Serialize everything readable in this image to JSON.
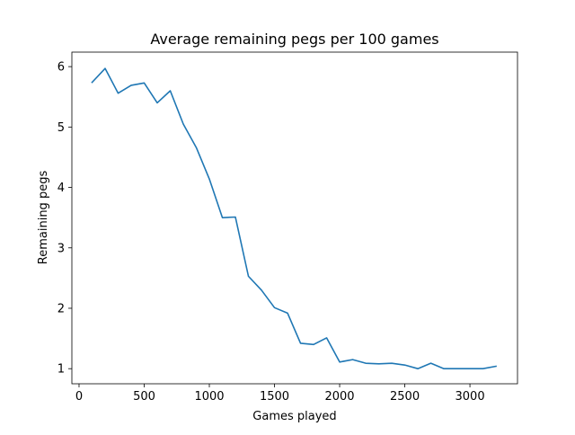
{
  "chart_data": {
    "type": "line",
    "title": "Average remaining pegs per 100 games",
    "xlabel": "Games played",
    "ylabel": "Remaining pegs",
    "xlim": [
      -55,
      3365
    ],
    "ylim": [
      0.75,
      6.24
    ],
    "xticks": [
      0,
      500,
      1000,
      1500,
      2000,
      2500,
      3000
    ],
    "yticks": [
      1,
      2,
      3,
      4,
      5,
      6
    ],
    "grid": false,
    "line_color": "#1f77b4",
    "series": [
      {
        "x": [
          100,
          200,
          300,
          400,
          500,
          600,
          700,
          800,
          900,
          1000,
          1100,
          1200,
          1300,
          1400,
          1500,
          1600,
          1700,
          1800,
          1900,
          2000,
          2100,
          2200,
          2300,
          2400,
          2500,
          2600,
          2700,
          2800,
          2900,
          3000,
          3100,
          3200
        ],
        "values": [
          5.74,
          5.97,
          5.56,
          5.69,
          5.73,
          5.4,
          5.6,
          5.05,
          4.66,
          4.14,
          3.5,
          3.51,
          2.53,
          2.3,
          2.01,
          1.92,
          1.42,
          1.4,
          1.51,
          1.11,
          1.15,
          1.09,
          1.08,
          1.09,
          1.06,
          1.0,
          1.09,
          1.0,
          1.0,
          1.0,
          1.0,
          1.04
        ]
      }
    ]
  }
}
